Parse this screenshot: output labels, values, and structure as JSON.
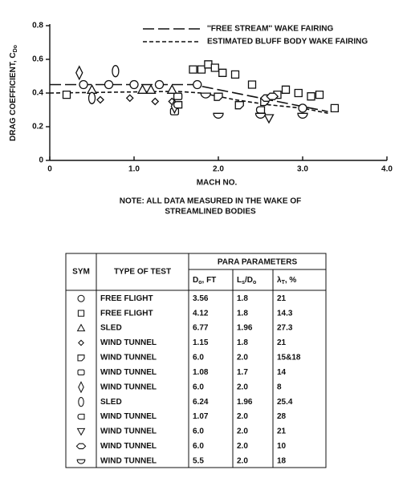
{
  "chart_data": {
    "type": "scatter",
    "y_label": [
      "DRAG COEFFICIENT, C",
      "Do"
    ],
    "x_label": "MACH NO.",
    "annotations": [
      "NOTE: ALL DATA MEASURED IN THE WAKE OF",
      "STREAMLINED BODIES"
    ],
    "xlim": [
      0,
      4
    ],
    "ylim": [
      0,
      0.8
    ],
    "xticks": [
      0,
      {
        "value": 1,
        "label": "1.0"
      },
      {
        "value": 2,
        "label": "2.0"
      },
      {
        "value": 3,
        "label": "3.0"
      },
      {
        "value": 4,
        "label": "4.0"
      }
    ],
    "yticks": [
      0,
      0.2,
      0.4,
      0.6,
      0.8
    ],
    "color": "#111111",
    "grid": false,
    "legend": "top-right",
    "lines": [
      {
        "name": "''FREE STREAM'' WAKE FAIRING",
        "style": "long-dash",
        "x": [
          0,
          1.7,
          2.0,
          2.5,
          3.0,
          3.3
        ],
        "values": [
          0.45,
          0.45,
          0.42,
          0.37,
          0.32,
          0.29
        ]
      },
      {
        "name": "ESTIMATED BLUFF BODY WAKE FAIRING",
        "style": "short-dash",
        "x": [
          0,
          1.5,
          1.8,
          2.2,
          2.6,
          3.0,
          3.3
        ],
        "values": [
          0.4,
          0.41,
          0.4,
          0.36,
          0.33,
          0.31,
          0.28
        ]
      }
    ],
    "series": [
      {
        "marker": "circle",
        "x": [
          0.4,
          0.7,
          1.0,
          1.3,
          1.75,
          3.0
        ],
        "values": [
          0.45,
          0.45,
          0.45,
          0.45,
          0.45,
          0.31
        ]
      },
      {
        "marker": "square",
        "x": [
          0.2,
          1.7,
          1.8,
          1.88,
          1.96,
          2.05,
          2.2,
          2.4,
          2.7,
          2.8,
          2.95,
          3.1,
          3.2,
          3.38
        ],
        "values": [
          0.39,
          0.54,
          0.54,
          0.57,
          0.55,
          0.52,
          0.51,
          0.45,
          0.39,
          0.42,
          0.4,
          0.38,
          0.39,
          0.31
        ]
      },
      {
        "marker": "triangle",
        "x": [
          0.5,
          1.1,
          1.2,
          1.45
        ],
        "values": [
          0.42,
          0.42,
          0.42,
          0.42
        ]
      },
      {
        "marker": "diamond-small",
        "x": [
          0.6,
          0.95,
          1.25,
          1.45
        ],
        "values": [
          0.36,
          0.37,
          0.35,
          0.35
        ]
      },
      {
        "marker": "d-shape",
        "x": [
          2.0,
          2.25,
          2.55
        ],
        "values": [
          0.38,
          0.33,
          0.35
        ]
      },
      {
        "marker": "rounded-rect",
        "x": [
          1.52,
          1.48
        ],
        "values": [
          0.38,
          0.29
        ]
      },
      {
        "marker": "diamond",
        "x": [
          0.35,
          1.48
        ],
        "values": [
          0.52,
          0.32
        ]
      },
      {
        "marker": "ellipse",
        "x": [
          0.78,
          0.5
        ],
        "values": [
          0.53,
          0.37
        ]
      },
      {
        "marker": "left-rounded",
        "x": [
          1.52,
          2.5
        ],
        "values": [
          0.33,
          0.3
        ]
      },
      {
        "marker": "down-triangle",
        "x": [
          2.6
        ],
        "values": [
          0.25
        ]
      },
      {
        "marker": "hexagon",
        "x": [
          2.57,
          2.64
        ],
        "values": [
          0.37,
          0.38
        ]
      },
      {
        "marker": "half-circle",
        "x": [
          1.85,
          2.0,
          2.5,
          3.0
        ],
        "values": [
          0.39,
          0.27,
          0.27,
          0.27
        ]
      }
    ]
  },
  "table": {
    "headers": [
      "SYM",
      "TYPE OF TEST",
      "PARA PARAMETERS"
    ],
    "subheaders": [
      [
        "D",
        "o",
        ", FT"
      ],
      [
        "L",
        "s",
        "/D",
        "o"
      ],
      [
        "λ",
        "T",
        ", %"
      ]
    ],
    "rows": [
      [
        "FREE FLIGHT",
        "3.56",
        "1.8",
        "21"
      ],
      [
        "FREE FLIGHT",
        "4.12",
        "1.8",
        "14.3"
      ],
      [
        "SLED",
        "6.77",
        "1.96",
        "27.3"
      ],
      [
        "WIND TUNNEL",
        "1.15",
        "1.8",
        "21"
      ],
      [
        "WIND TUNNEL",
        "6.0",
        "2.0",
        "15&18"
      ],
      [
        "WIND TUNNEL",
        "1.08",
        "1.7",
        "14"
      ],
      [
        "WIND TUNNEL",
        "6.0",
        "2.0",
        "8"
      ],
      [
        "SLED",
        "6.24",
        "1.96",
        "25.4"
      ],
      [
        "WIND TUNNEL",
        "1.07",
        "2.0",
        "28"
      ],
      [
        "WIND TUNNEL",
        "6.0",
        "2.0",
        "21"
      ],
      [
        "WIND TUNNEL",
        "6.0",
        "2.0",
        "10"
      ],
      [
        "WIND TUNNEL",
        "5.5",
        "2.0",
        "18"
      ]
    ]
  }
}
